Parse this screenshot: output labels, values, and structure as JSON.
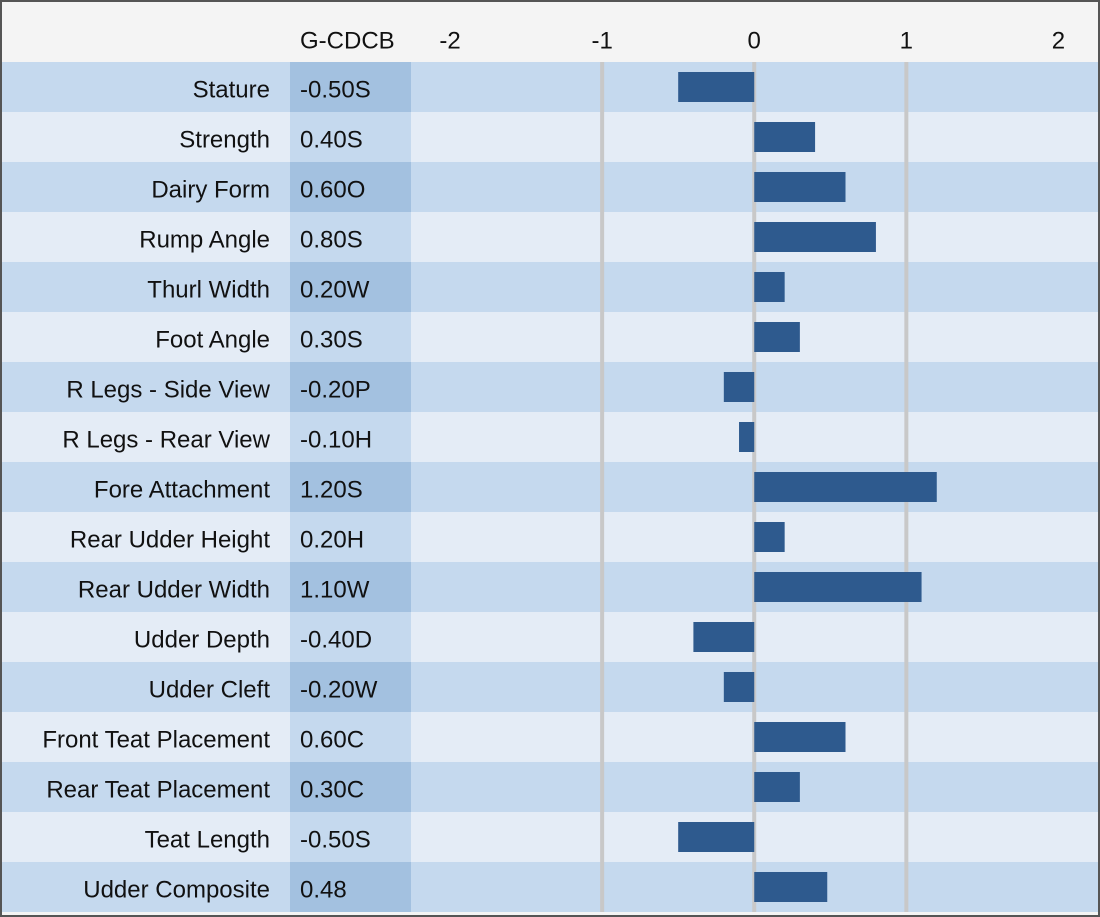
{
  "chart_data": {
    "type": "bar",
    "orientation": "horizontal",
    "column_header": "G-CDCB",
    "categories": [
      "Stature",
      "Strength",
      "Dairy Form",
      "Rump Angle",
      "Thurl Width",
      "Foot Angle",
      "R Legs - Side View",
      "R Legs - Rear View",
      "Fore Attachment",
      "Rear Udder Height",
      "Rear Udder Width",
      "Udder Depth",
      "Udder Cleft",
      "Front Teat Placement",
      "Rear Teat Placement",
      "Teat Length",
      "Udder Composite"
    ],
    "values": [
      -0.5,
      0.4,
      0.6,
      0.8,
      0.2,
      0.3,
      -0.2,
      -0.1,
      1.2,
      0.2,
      1.1,
      -0.4,
      -0.2,
      0.6,
      0.3,
      -0.5,
      0.48
    ],
    "value_labels": [
      "-0.50S",
      "0.40S",
      "0.60O",
      "0.80S",
      "0.20W",
      "0.30S",
      "-0.20P",
      "-0.10H",
      "1.20S",
      "0.20H",
      "1.10W",
      "-0.40D",
      "-0.20W",
      "0.60C",
      "0.30C",
      "-0.50S",
      "0.48"
    ],
    "color": "#2e5a8e",
    "xlim": [
      -2.25,
      2.26
    ],
    "xticks": [
      -2,
      -1,
      0,
      1,
      2
    ],
    "grid": true
  }
}
